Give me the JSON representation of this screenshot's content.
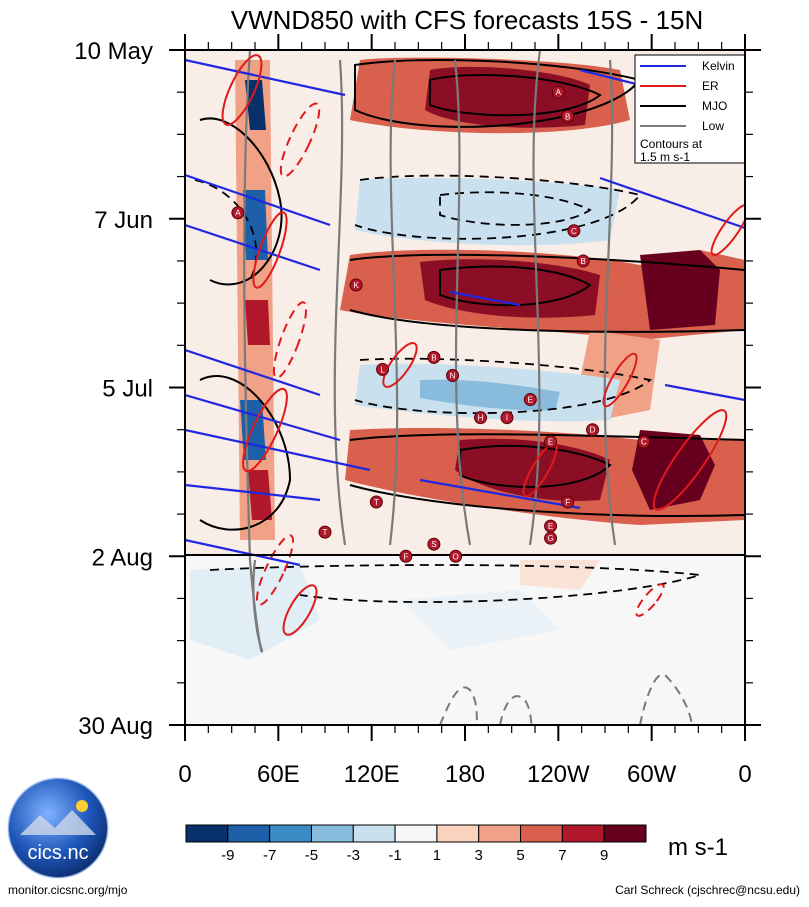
{
  "chart_data": {
    "type": "heatmap",
    "title": "VWND850 with CFS forecasts  15S - 15N",
    "x_tick_labels": [
      "0",
      "60E",
      "120E",
      "180",
      "120W",
      "60W",
      "0"
    ],
    "x_values_deg_east": [
      0,
      60,
      120,
      180,
      240,
      300,
      360
    ],
    "y_tick_labels": [
      "10 May",
      "7 Jun",
      "5 Jul",
      "2 Aug",
      "30 Aug"
    ],
    "y_range": [
      "10 May",
      "30 Aug"
    ],
    "forecast_start": "2 Aug",
    "legend": {
      "entries": [
        {
          "label": "Kelvin",
          "color": "#1f28e0"
        },
        {
          "label": "ER",
          "color": "#e01a1a"
        },
        {
          "label": "MJO",
          "color": "#000000"
        },
        {
          "label": "Low",
          "color": "#7a7a7a"
        }
      ],
      "note": "Contours at\n1.5 m s-1"
    },
    "colorbar": {
      "labels": [
        "-9",
        "-7",
        "-5",
        "-3",
        "-1",
        "1",
        "3",
        "5",
        "7",
        "9"
      ],
      "units": "m s-1",
      "colors": [
        "#08306b",
        "#1d5fa8",
        "#3c8bc4",
        "#88bbdc",
        "#c9e1ef",
        "#f7f7f7",
        "#fbd2bd",
        "#f0a186",
        "#d9604d",
        "#b2182b",
        "#67001f"
      ]
    },
    "tc_markers": [
      {
        "letter": "A",
        "lon": 240,
        "time": "17 May"
      },
      {
        "letter": "B",
        "lon": 246,
        "time": "21 May"
      },
      {
        "letter": "A",
        "lon": 34,
        "time": "6 Jun"
      },
      {
        "letter": "C",
        "lon": 250,
        "time": "9 Jun"
      },
      {
        "letter": "B",
        "lon": 256,
        "time": "14 Jun"
      },
      {
        "letter": "K",
        "lon": 110,
        "time": "18 Jun"
      },
      {
        "letter": "B",
        "lon": 160,
        "time": "30 Jun"
      },
      {
        "letter": "L",
        "lon": 127,
        "time": "2 Jul"
      },
      {
        "letter": "N",
        "lon": 172,
        "time": "3 Jul"
      },
      {
        "letter": "E",
        "lon": 222,
        "time": "7 Jul"
      },
      {
        "letter": "H",
        "lon": 190,
        "time": "10 Jul"
      },
      {
        "letter": "I",
        "lon": 207,
        "time": "10 Jul"
      },
      {
        "letter": "D",
        "lon": 262,
        "time": "12 Jul"
      },
      {
        "letter": "E",
        "lon": 235,
        "time": "14 Jul"
      },
      {
        "letter": "C",
        "lon": 295,
        "time": "14 Jul"
      },
      {
        "letter": "T",
        "lon": 123,
        "time": "24 Jul"
      },
      {
        "letter": "F",
        "lon": 246,
        "time": "24 Jul"
      },
      {
        "letter": "E",
        "lon": 235,
        "time": "28 Jul"
      },
      {
        "letter": "T",
        "lon": 90,
        "time": "29 Jul"
      },
      {
        "letter": "G",
        "lon": 235,
        "time": "30 Jul"
      },
      {
        "letter": "S",
        "lon": 160,
        "time": "31 Jul"
      },
      {
        "letter": "F",
        "lon": 142,
        "time": "2 Aug"
      },
      {
        "letter": "O",
        "lon": 174,
        "time": "2 Aug"
      }
    ]
  },
  "logo": {
    "text": "cics.nc"
  },
  "footer": {
    "left": "monitor.cicsnc.org/mjo",
    "right": "Carl Schreck (cjschrec@ncsu.edu)"
  }
}
